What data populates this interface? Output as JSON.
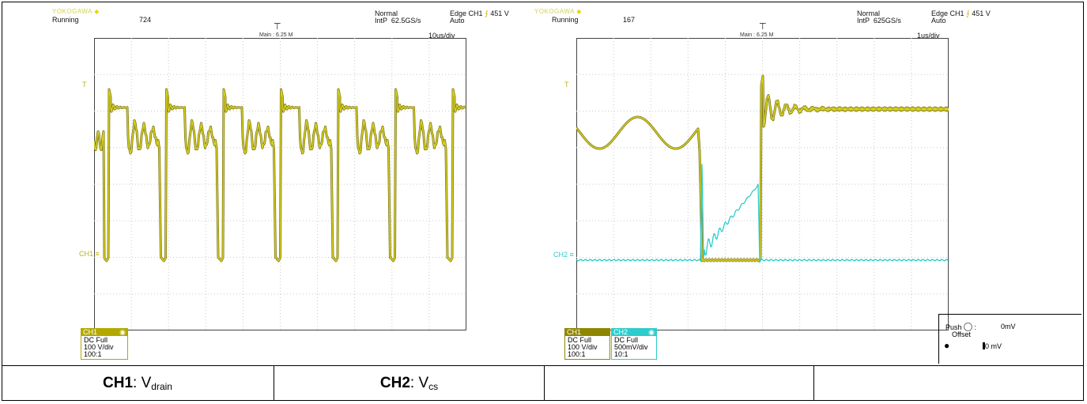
{
  "colors": {
    "ch1": "#d9d21f",
    "ch1_dark": "#7f7a1b",
    "ch2": "#2ecccc",
    "grid": "#c9c9c9"
  },
  "left_scope": {
    "brand": "YOKOGAWA",
    "status": "Running",
    "count": "724",
    "mode": "Normal",
    "sample": "IntP  62.5GS/s",
    "trigger": "Edge CH1",
    "trigger_level": "451 V",
    "trigger_mode": "Auto",
    "main": "Main : 6.25 M",
    "timebase": "10us/div",
    "ch1_label": "CH1",
    "ch1_info": "DC Full\n100 V/div\n100:1"
  },
  "right_scope": {
    "brand": "YOKOGAWA",
    "status": "Running",
    "count": "167",
    "mode": "Normal",
    "sample": "IntP  625GS/s",
    "trigger": "Edge CH1",
    "trigger_level": "451 V",
    "trigger_mode": "Auto",
    "main": "Main : 6.25 M",
    "timebase": "1us/div",
    "ch1_label": "CH1",
    "ch1_info": "DC Full\n100 V/div\n100:1",
    "ch2_label": "CH2",
    "ch2_info": "DC Full\n500mV/div\n10:1",
    "offset_push": "Push",
    "offset_value": "0mV",
    "offset_label": "Offset",
    "offset_value2": "0 mV"
  },
  "captions": {
    "ch1_prefix": "CH1",
    "ch1_sep": ": V",
    "ch1_sub": "drain",
    "ch2_prefix": "CH2",
    "ch2_sep": ": V",
    "ch2_sub": "cs"
  }
}
